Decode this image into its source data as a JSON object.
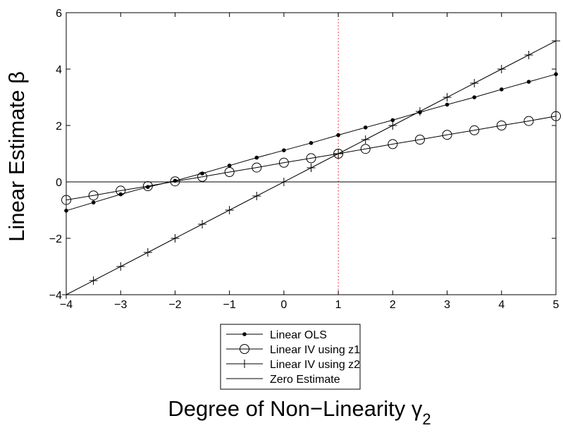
{
  "chart_data": {
    "type": "line",
    "xlabel": "Degree of Non−Linearity γ",
    "xlabel_subscript": "2",
    "ylabel": "Linear Estimate β",
    "xlim": [
      -4,
      5
    ],
    "ylim": [
      -4,
      6
    ],
    "xticks": [
      -4,
      -3,
      -2,
      -1,
      0,
      1,
      2,
      3,
      4,
      5
    ],
    "yticks": [
      -4,
      -2,
      0,
      2,
      4,
      6
    ],
    "grid": false,
    "legend_position": "below plot",
    "reference_line": {
      "x": 1,
      "style": "dotted",
      "color": "#ff0000"
    },
    "x": [
      -4,
      -3.5,
      -3,
      -2.5,
      -2,
      -1.5,
      -1,
      -0.5,
      0,
      0.5,
      1,
      1.5,
      2,
      2.5,
      3,
      3.5,
      4,
      4.5,
      5
    ],
    "series": [
      {
        "name": "Linear OLS",
        "marker": "dot",
        "color": "#000000",
        "values": [
          -1.02,
          -0.73,
          -0.44,
          -0.18,
          0.04,
          0.3,
          0.58,
          0.86,
          1.12,
          1.38,
          1.66,
          1.93,
          2.19,
          2.47,
          2.74,
          3.0,
          3.28,
          3.55,
          3.82
        ]
      },
      {
        "name": "Linear IV using z1",
        "marker": "circle",
        "color": "#000000",
        "values": [
          -0.64,
          -0.48,
          -0.31,
          -0.15,
          0.02,
          0.18,
          0.35,
          0.51,
          0.68,
          0.84,
          1.0,
          1.17,
          1.34,
          1.5,
          1.67,
          1.83,
          2.0,
          2.16,
          2.33
        ]
      },
      {
        "name": "Linear IV using z2",
        "marker": "plus",
        "color": "#000000",
        "values": [
          -4.0,
          -3.5,
          -3.0,
          -2.5,
          -2.0,
          -1.5,
          -1.0,
          -0.5,
          0.0,
          0.5,
          1.0,
          1.5,
          2.0,
          2.5,
          3.0,
          3.5,
          4.0,
          4.5,
          5.0
        ]
      },
      {
        "name": "Zero Estimate",
        "marker": "none",
        "color": "#000000",
        "values": [
          0,
          0,
          0,
          0,
          0,
          0,
          0,
          0,
          0,
          0,
          0,
          0,
          0,
          0,
          0,
          0,
          0,
          0,
          0
        ]
      }
    ]
  }
}
